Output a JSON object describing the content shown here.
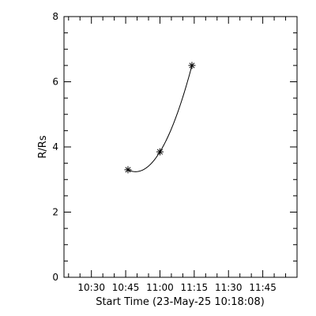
{
  "chart_data": {
    "type": "line",
    "xlabel": "Start Time (23-May-25 10:18:08)",
    "ylabel": "R/Rs",
    "xlim": [
      "10:18",
      "12:00"
    ],
    "ylim": [
      0,
      8
    ],
    "x_ticks": [
      "10:30",
      "10:45",
      "11:00",
      "11:15",
      "11:30",
      "11:45"
    ],
    "y_ticks": [
      "0",
      "2",
      "4",
      "6",
      "8"
    ],
    "grid": false,
    "series": [
      {
        "points": [
          {
            "x": "10:46",
            "y": 3.3
          },
          {
            "x": "11:00",
            "y": 3.85
          },
          {
            "x": "11:14",
            "y": 6.5
          }
        ],
        "marker": "asterisk",
        "fit": "quadratic"
      }
    ],
    "colors": {
      "line": "#000000",
      "background": "#ffffff"
    }
  }
}
